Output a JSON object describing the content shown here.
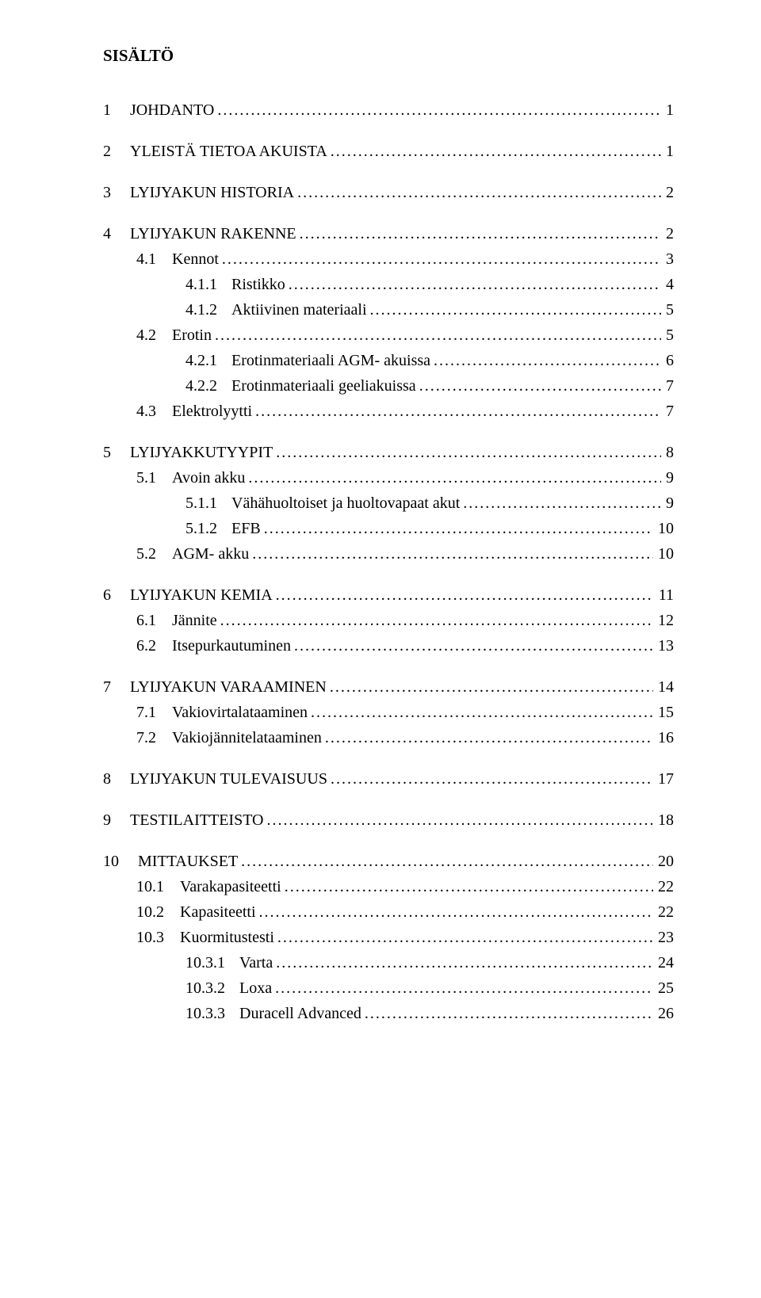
{
  "title": "SISÄLTÖ",
  "entries": [
    {
      "level": 1,
      "num": "1",
      "label": "JOHDANTO",
      "page": "1",
      "gap": "top"
    },
    {
      "level": 1,
      "num": "2",
      "label": "YLEISTÄ TIETOA AKUISTA",
      "page": "1",
      "gap": "top"
    },
    {
      "level": 1,
      "num": "3",
      "label": "LYIJYAKUN HISTORIA",
      "page": "2",
      "gap": "top"
    },
    {
      "level": 1,
      "num": "4",
      "label": "LYIJYAKUN RAKENNE",
      "page": "2",
      "gap": "top"
    },
    {
      "level": 2,
      "num": "4.1",
      "label": "Kennot",
      "page": "3",
      "gap": "topsmall"
    },
    {
      "level": 3,
      "num": "4.1.1",
      "label": "Ristikko",
      "page": "4"
    },
    {
      "level": 3,
      "num": "4.1.2",
      "label": "Aktiivinen materiaali",
      "page": "5"
    },
    {
      "level": 2,
      "num": "4.2",
      "label": "Erotin",
      "page": "5"
    },
    {
      "level": 3,
      "num": "4.2.1",
      "label": "Erotinmateriaali AGM- akuissa",
      "page": "6"
    },
    {
      "level": 3,
      "num": "4.2.2",
      "label": "Erotinmateriaali geeliakuissa",
      "page": "7"
    },
    {
      "level": 2,
      "num": "4.3",
      "label": "Elektrolyytti",
      "page": "7"
    },
    {
      "level": 1,
      "num": "5",
      "label": "LYIJYAKKUTYYPIT",
      "page": "8",
      "gap": "top"
    },
    {
      "level": 2,
      "num": "5.1",
      "label": "Avoin akku",
      "page": "9",
      "gap": "topsmall"
    },
    {
      "level": 3,
      "num": "5.1.1",
      "label": "Vähähuoltoiset ja huoltovapaat akut",
      "page": "9"
    },
    {
      "level": 3,
      "num": "5.1.2",
      "label": "EFB",
      "page": "10"
    },
    {
      "level": 2,
      "num": "5.2",
      "label": "AGM- akku",
      "page": "10"
    },
    {
      "level": 1,
      "num": "6",
      "label": "LYIJYAKUN KEMIA",
      "page": "11",
      "gap": "top"
    },
    {
      "level": 2,
      "num": "6.1",
      "label": "Jännite",
      "page": "12",
      "gap": "topsmall"
    },
    {
      "level": 2,
      "num": "6.2",
      "label": "Itsepurkautuminen",
      "page": "13"
    },
    {
      "level": 1,
      "num": "7",
      "label": "LYIJYAKUN VARAAMINEN",
      "page": "14",
      "gap": "top"
    },
    {
      "level": 2,
      "num": "7.1",
      "label": "Vakiovirtalataaminen",
      "page": "15",
      "gap": "topsmall"
    },
    {
      "level": 2,
      "num": "7.2",
      "label": "Vakiojännitelataaminen",
      "page": "16"
    },
    {
      "level": 1,
      "num": "8",
      "label": "LYIJYAKUN TULEVAISUUS",
      "page": "17",
      "gap": "top"
    },
    {
      "level": 1,
      "num": "9",
      "label": "TESTILAITTEISTO",
      "page": "18",
      "gap": "top"
    },
    {
      "level": 1,
      "num": "10",
      "label": "MITTAUKSET",
      "page": "20",
      "gap": "top"
    },
    {
      "level": 2,
      "num": "10.1",
      "label": "Varakapasiteetti",
      "page": "22",
      "gap": "topsmall"
    },
    {
      "level": 2,
      "num": "10.2",
      "label": "Kapasiteetti",
      "page": "22"
    },
    {
      "level": 2,
      "num": "10.3",
      "label": "Kuormitustesti",
      "page": "23"
    },
    {
      "level": 3,
      "num": "10.3.1",
      "label": "Varta",
      "page": "24"
    },
    {
      "level": 3,
      "num": "10.3.2",
      "label": "Loxa",
      "page": "25"
    },
    {
      "level": 3,
      "num": "10.3.3",
      "label": "Duracell Advanced",
      "page": "26"
    }
  ]
}
